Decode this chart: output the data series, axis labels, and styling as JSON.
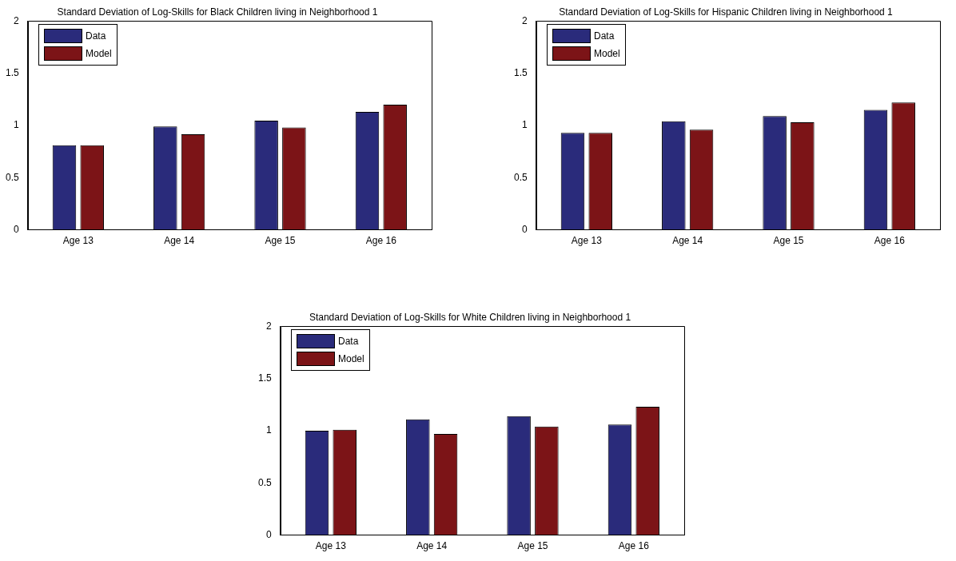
{
  "chart_data": [
    {
      "type": "bar",
      "title": "Standard Deviation of Log-Skills for Black Children living in Neighborhood 1",
      "categories": [
        "Age 13",
        "Age 14",
        "Age 15",
        "Age 16"
      ],
      "series": [
        {
          "name": "Data",
          "color": "#2a2b7b",
          "values": [
            0.81,
            0.99,
            1.045,
            1.13
          ]
        },
        {
          "name": "Model",
          "color": "#7c1417",
          "values": [
            0.81,
            0.915,
            0.98,
            1.2
          ]
        }
      ],
      "ylim": [
        0,
        2
      ],
      "yticks": [
        0,
        0.5,
        1,
        1.5,
        2
      ],
      "grid": false,
      "legend": "top left"
    },
    {
      "type": "bar",
      "title": "Standard Deviation of Log-Skills for Hispanic Children living in Neighborhood 1",
      "categories": [
        "Age 13",
        "Age 14",
        "Age 15",
        "Age 16"
      ],
      "series": [
        {
          "name": "Data",
          "color": "#2a2b7b",
          "values": [
            0.93,
            1.04,
            1.09,
            1.15
          ]
        },
        {
          "name": "Model",
          "color": "#7c1417",
          "values": [
            0.93,
            0.96,
            1.03,
            1.22
          ]
        }
      ],
      "ylim": [
        0,
        2
      ],
      "yticks": [
        0,
        0.5,
        1,
        1.5,
        2
      ],
      "grid": false,
      "legend": "top left"
    },
    {
      "type": "bar",
      "title": "Standard Deviation of Log-Skills for White Children living in Neighborhood 1",
      "categories": [
        "Age 13",
        "Age 14",
        "Age 15",
        "Age 16"
      ],
      "series": [
        {
          "name": "Data",
          "color": "#2a2b7b",
          "values": [
            1.0,
            1.11,
            1.14,
            1.06
          ]
        },
        {
          "name": "Model",
          "color": "#7c1417",
          "values": [
            1.01,
            0.97,
            1.04,
            1.23
          ]
        }
      ],
      "ylim": [
        0,
        2
      ],
      "yticks": [
        0,
        0.5,
        1,
        1.5,
        2
      ],
      "grid": false,
      "legend": "top left"
    }
  ]
}
